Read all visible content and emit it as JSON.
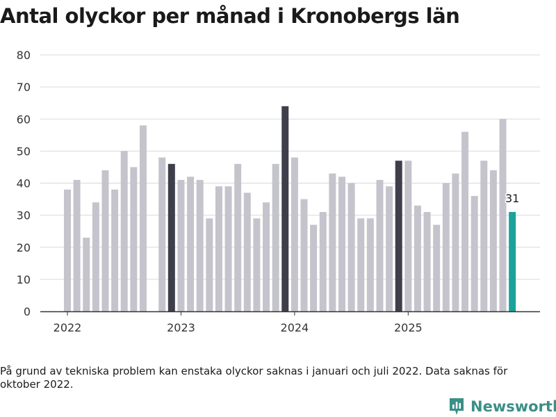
{
  "title": "Antal olyckor per månad i Kronobergs län",
  "note": "På grund av tekniska problem kan enstaka olyckor saknas i januari och juli 2022. Data saknas för oktober 2022.",
  "brand": "Newsworthy",
  "colors": {
    "normal": "#c5c4cc",
    "december": "#3f3f4b",
    "latest": "#1aa39a",
    "grid": "#d9d9d9",
    "axis": "#333333"
  },
  "chart_data": {
    "type": "bar",
    "title": "Antal olyckor per månad i Kronobergs län",
    "xlabel": "",
    "ylabel": "",
    "ylim": [
      0,
      80
    ],
    "yticks": [
      0,
      10,
      20,
      30,
      40,
      50,
      60,
      70,
      80
    ],
    "xticks": [
      "2022",
      "2023",
      "2024",
      "2025"
    ],
    "highlight_label": "31",
    "categories": [
      "2022-01",
      "2022-02",
      "2022-03",
      "2022-04",
      "2022-05",
      "2022-06",
      "2022-07",
      "2022-08",
      "2022-09",
      "2022-10",
      "2022-11",
      "2022-12",
      "2023-01",
      "2023-02",
      "2023-03",
      "2023-04",
      "2023-05",
      "2023-06",
      "2023-07",
      "2023-08",
      "2023-09",
      "2023-10",
      "2023-11",
      "2023-12",
      "2024-01",
      "2024-02",
      "2024-03",
      "2024-04",
      "2024-05",
      "2024-06",
      "2024-07",
      "2024-08",
      "2024-09",
      "2024-10",
      "2024-11",
      "2024-12",
      "2025-01",
      "2025-02",
      "2025-03",
      "2025-04",
      "2025-05",
      "2025-06",
      "2025-07",
      "2025-08",
      "2025-09",
      "2025-10",
      "2025-11",
      "2025-12"
    ],
    "values": [
      38,
      41,
      23,
      34,
      44,
      38,
      50,
      45,
      58,
      null,
      48,
      46,
      41,
      42,
      41,
      29,
      39,
      39,
      46,
      37,
      29,
      34,
      46,
      64,
      48,
      35,
      27,
      31,
      43,
      42,
      40,
      29,
      29,
      41,
      39,
      47,
      47,
      33,
      31,
      27,
      40,
      43,
      56,
      36,
      47,
      44,
      60,
      31
    ]
  }
}
